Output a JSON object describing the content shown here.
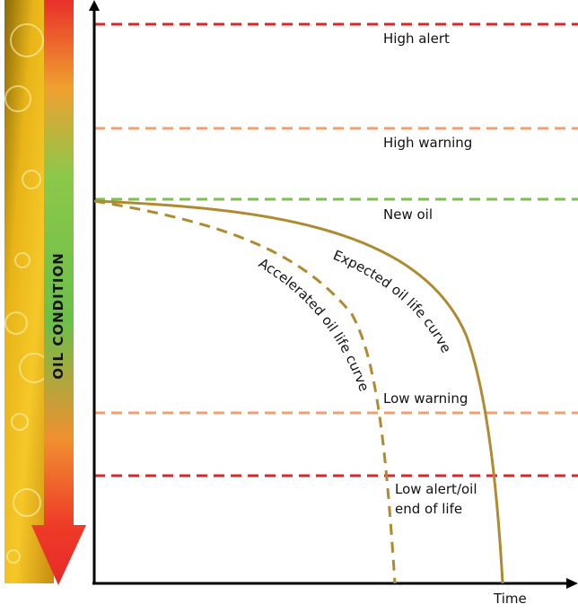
{
  "vertical_label": "OIL CONDITION",
  "levels": [
    "High alert",
    "High warning",
    "New oil",
    "Low warning"
  ],
  "low_alert": [
    "Low alert/oil",
    "end of life"
  ],
  "curves": {
    "expected": "Expected oil life curve",
    "accelerated": "Accelerated oil life curve"
  },
  "x_axis_label": "Time"
}
